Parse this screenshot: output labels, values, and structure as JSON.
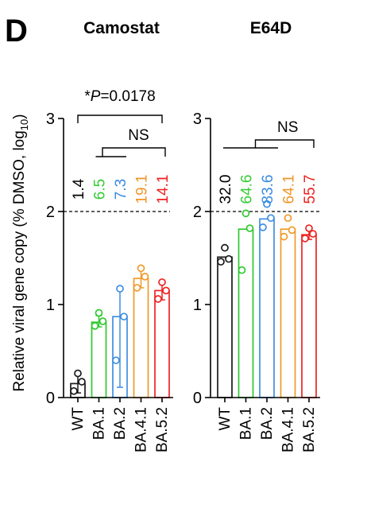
{
  "panel_label": "D",
  "chart_data": [
    {
      "type": "bar",
      "title": "Camostat",
      "ylabel": "Relative viral gene copy  (% DMSO, log",
      "ylabel_subscript": "10",
      "ylabel_close": ")",
      "ylim": [
        0,
        3
      ],
      "yticks": [
        0,
        1,
        2,
        3
      ],
      "reference_line": 2,
      "categories": [
        "WT",
        "BA.1",
        "BA.2",
        "BA.4.1",
        "BA.5.2"
      ],
      "values": [
        0.15,
        0.81,
        0.87,
        1.28,
        1.15
      ],
      "error_low": [
        0.05,
        0.76,
        0.11,
        1.18,
        1.05
      ],
      "error_high": [
        0.25,
        0.88,
        1.17,
        1.39,
        1.25
      ],
      "points": [
        [
          0.07,
          0.17,
          0.26
        ],
        [
          0.77,
          0.82,
          0.91
        ],
        [
          0.4,
          0.87,
          1.17
        ],
        [
          1.18,
          1.3,
          1.39
        ],
        [
          1.06,
          1.15,
          1.24
        ]
      ],
      "data_labels": [
        "1.4",
        "6.5",
        "7.3",
        "19.1",
        "14.1"
      ],
      "significance": [
        {
          "label": "*P=0.0178",
          "italic_part": "P",
          "from": 0,
          "to": 4
        },
        {
          "label": "NS",
          "from": 1,
          "to": 4
        }
      ]
    },
    {
      "type": "bar",
      "title": "E64D",
      "ylim": [
        0,
        3
      ],
      "yticks": [
        0,
        1,
        2,
        3
      ],
      "reference_line": 2,
      "categories": [
        "WT",
        "BA.1",
        "BA.2",
        "BA.4.1",
        "BA.5.2"
      ],
      "values": [
        1.51,
        1.81,
        1.92,
        1.81,
        1.75
      ],
      "error_low": [
        1.51,
        1.81,
        1.92,
        1.81,
        1.7
      ],
      "error_high": [
        1.51,
        1.81,
        1.92,
        1.81,
        1.8
      ],
      "points": [
        [
          1.46,
          1.49,
          1.61
        ],
        [
          1.37,
          1.82,
          1.98
        ],
        [
          1.83,
          1.93,
          2.08
        ],
        [
          1.73,
          1.8,
          1.93
        ],
        [
          1.71,
          1.76,
          1.82
        ]
      ],
      "data_labels": [
        "32.0",
        "64.6",
        "83.6",
        "64.1",
        "55.7"
      ],
      "significance": [
        {
          "label": "NS",
          "from": 0,
          "to": 4
        }
      ]
    }
  ],
  "colors": {
    "series": [
      "#1a1a1a",
      "#2ec82e",
      "#3f8fe0",
      "#ef9a2a",
      "#ee2424"
    ],
    "axis": "#000000",
    "label_text": [
      "#000000",
      "#34cc34",
      "#3a8ae0",
      "#f09428",
      "#ee2020"
    ]
  }
}
